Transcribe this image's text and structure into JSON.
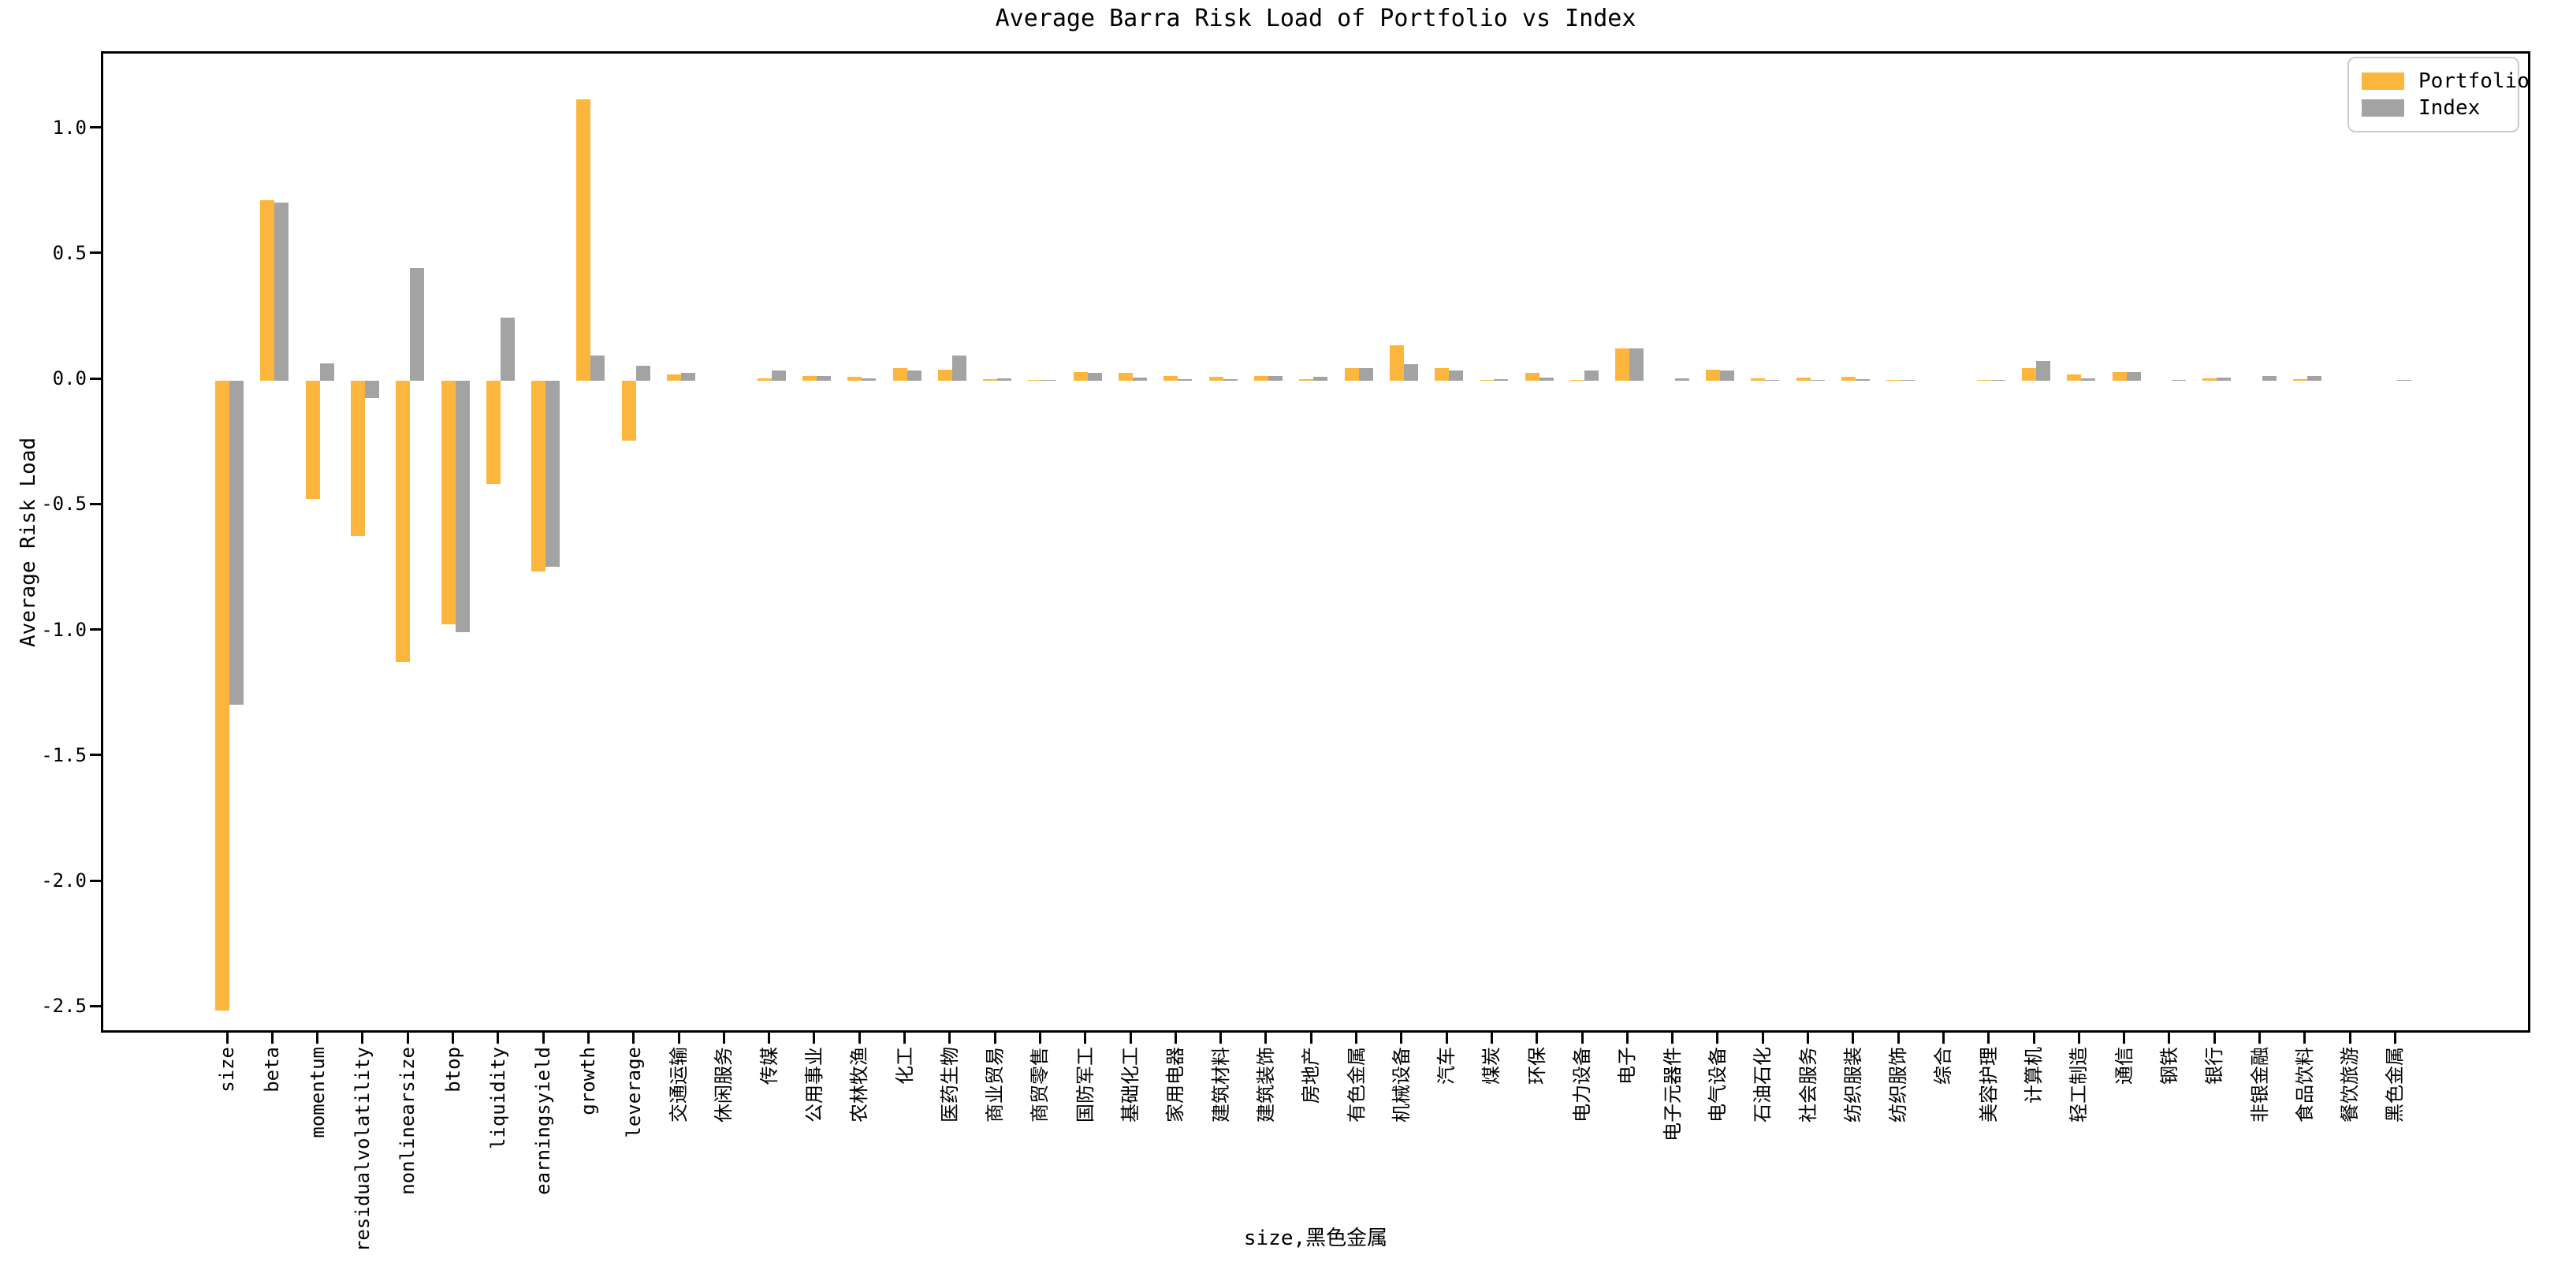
{
  "title": "Average Barra Risk Load of Portfolio vs Index",
  "chart_data": {
    "type": "bar",
    "title": "Average Barra Risk Load of Portfolio vs Index",
    "xlabel": "size,黑色金属",
    "ylabel": "Average Risk Load",
    "ylim": [
      -2.61,
      1.3
    ],
    "yticks": [
      1.0,
      0.5,
      0.0,
      -0.5,
      -1.0,
      -1.5,
      -2.0,
      -2.5
    ],
    "grid": false,
    "legend_position": "upper right",
    "categories": [
      "size",
      "beta",
      "momentum",
      "residualvolatility",
      "nonlinearsize",
      "btop",
      "liquidity",
      "earningsyield",
      "growth",
      "leverage",
      "交通运输",
      "休闲服务",
      "传媒",
      "公用事业",
      "农林牧渔",
      "化工",
      "医药生物",
      "商业贸易",
      "商贸零售",
      "国防军工",
      "基础化工",
      "家用电器",
      "建筑材料",
      "建筑装饰",
      "房地产",
      "有色金属",
      "机械设备",
      "汽车",
      "煤炭",
      "环保",
      "电力设备",
      "电子",
      "电子元器件",
      "电气设备",
      "石油石化",
      "社会服务",
      "纺织服装",
      "纺织服饰",
      "综合",
      "美容护理",
      "计算机",
      "轻工制造",
      "通信",
      "钢铁",
      "银行",
      "非银金融",
      "食品饮料",
      "餐饮旅游",
      "黑色金属"
    ],
    "series": [
      {
        "name": "Portfolio",
        "color": "#FDB63D",
        "values": [
          -2.51,
          0.72,
          -0.47,
          -0.62,
          -1.12,
          -0.97,
          -0.41,
          -0.76,
          1.12,
          -0.24,
          0.025,
          0,
          0.008,
          0.02,
          0.015,
          0.05,
          0.045,
          0.006,
          0.004,
          0.035,
          0.032,
          0.018,
          0.016,
          0.018,
          0.005,
          0.05,
          0.14,
          0.05,
          0.002,
          0.03,
          0.003,
          0.13,
          0,
          0.045,
          0.008,
          0.012,
          0.015,
          0.004,
          0,
          0.004,
          0.05,
          0.026,
          0.033,
          0,
          0.01,
          0,
          0.007,
          0,
          0
        ]
      },
      {
        "name": "Index",
        "color": "#A3A3A3",
        "values": [
          -1.29,
          0.71,
          0.07,
          -0.07,
          0.45,
          -1.0,
          0.25,
          -0.74,
          0.1,
          0.06,
          0.03,
          0,
          0.04,
          0.02,
          0.01,
          0.04,
          0.1,
          0.009,
          0.002,
          0.03,
          0.014,
          0.006,
          0.006,
          0.018,
          0.017,
          0.05,
          0.065,
          0.04,
          0.005,
          0.013,
          0.04,
          0.13,
          0.01,
          0.04,
          0.003,
          0.003,
          0.006,
          0.003,
          0,
          0.004,
          0.08,
          0.009,
          0.033,
          0.004,
          0.013,
          0.018,
          0.02,
          0,
          0.004
        ]
      }
    ]
  }
}
